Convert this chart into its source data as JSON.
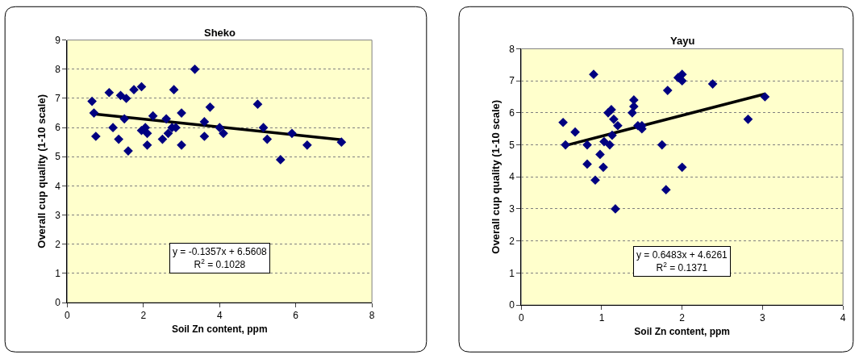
{
  "chart_data": [
    {
      "type": "scatter",
      "title": "Sheko",
      "xlabel": "Soil Zn content, ppm",
      "ylabel": "Overall cup quality (1-10 scale)",
      "xlim": [
        0,
        8
      ],
      "xticks": [
        0,
        2,
        4,
        6,
        8
      ],
      "ylim": [
        0,
        9
      ],
      "yticks": [
        0,
        1,
        2,
        3,
        4,
        5,
        6,
        7,
        8,
        9
      ],
      "grid": "y",
      "marker": "diamond",
      "series": [
        {
          "color": "#000080",
          "x": [
            0.65,
            0.7,
            0.75,
            1.1,
            1.2,
            1.35,
            1.4,
            1.5,
            1.55,
            1.6,
            1.75,
            1.95,
            1.95,
            2.05,
            2.1,
            2.1,
            2.25,
            2.5,
            2.6,
            2.65,
            2.75,
            2.8,
            2.85,
            3.0,
            3.0,
            3.35,
            3.6,
            3.6,
            3.75,
            4.0,
            4.1,
            5.0,
            5.15,
            5.25,
            5.6,
            5.9,
            6.3,
            7.2
          ],
          "values": [
            6.9,
            6.5,
            5.7,
            7.2,
            6.0,
            5.6,
            7.1,
            6.3,
            7.0,
            5.2,
            7.3,
            7.4,
            5.9,
            6.0,
            5.8,
            5.4,
            6.4,
            5.6,
            6.3,
            5.8,
            6.0,
            7.3,
            6.0,
            6.5,
            5.4,
            8.0,
            5.7,
            6.2,
            6.7,
            6.0,
            5.8,
            6.8,
            6.0,
            5.6,
            4.9,
            5.8,
            5.4,
            5.5
          ]
        },
        {
          "type": "line",
          "color": "#000000",
          "marker": "none",
          "x": [
            0.7,
            7.2
          ],
          "values": [
            6.47,
            5.58
          ]
        }
      ],
      "annotations": [
        "y = -0.1357x + 6.5608",
        "R$^{2}$ = 0.1028"
      ]
    },
    {
      "type": "scatter",
      "title": "Yayu",
      "xlabel": "Soil Zn content, ppm",
      "ylabel": "Overall cup quality (1-10 scale)",
      "xlim": [
        0,
        4
      ],
      "xticks": [
        0,
        1,
        2,
        3,
        4
      ],
      "ylim": [
        0,
        8
      ],
      "yticks": [
        0,
        1,
        2,
        3,
        4,
        5,
        6,
        7,
        8
      ],
      "grid": "y",
      "marker": "diamond",
      "series": [
        {
          "color": "#000080",
          "x": [
            0.52,
            0.55,
            0.67,
            0.82,
            0.82,
            0.9,
            0.92,
            0.98,
            1.02,
            1.03,
            1.08,
            1.1,
            1.12,
            1.13,
            1.15,
            1.17,
            1.2,
            1.38,
            1.4,
            1.4,
            1.45,
            1.5,
            1.5,
            1.75,
            1.8,
            1.82,
            1.95,
            2.0,
            2.0,
            2.0,
            2.38,
            2.82,
            3.03
          ],
          "values": [
            5.7,
            5.0,
            5.4,
            5.0,
            4.4,
            7.2,
            3.9,
            4.7,
            4.3,
            5.1,
            6.0,
            5.0,
            6.1,
            5.3,
            5.8,
            3.0,
            5.6,
            6.0,
            6.2,
            6.4,
            5.6,
            5.5,
            5.6,
            5.0,
            3.6,
            6.7,
            7.1,
            7.0,
            7.2,
            4.3,
            6.9,
            5.8,
            6.5
          ]
        },
        {
          "type": "line",
          "color": "#000000",
          "marker": "none",
          "x": [
            0.55,
            3.03
          ],
          "values": [
            4.98,
            6.59
          ]
        }
      ],
      "annotations": [
        "y = 0.6483x + 4.6261",
        "R$^{2}$ = 0.1371"
      ]
    }
  ]
}
